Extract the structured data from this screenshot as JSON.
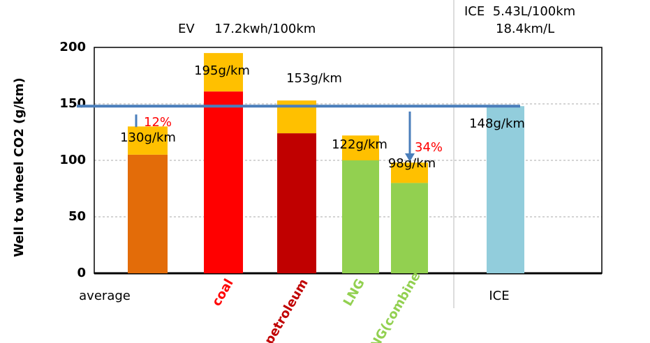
{
  "chart_data": {
    "type": "stacked_bar",
    "y_label": "Well to wheel CO2 (g/km)",
    "header": [
      "EV     17.2kwh/100km",
      "ICE  5.43L/100km",
      "18.4km/L"
    ],
    "categories": [
      "average",
      "coal",
      "petroleum",
      "LNG",
      "LNG(combine",
      "ICE"
    ],
    "category_colors": [
      "#000000",
      "#ff0000",
      "#c00000",
      "#92d050",
      "#92d050",
      "#000000"
    ],
    "series": [
      {
        "colors": [
          "#e36c09",
          "#ff0000",
          "#c00000",
          "#92d050",
          "#92d050",
          "#92cddc"
        ],
        "values": [
          105,
          161,
          124,
          100,
          80,
          148
        ]
      },
      {
        "color": "#ffc000",
        "values": [
          25,
          34,
          29,
          22,
          18,
          null
        ]
      }
    ],
    "total_labels": [
      "130g/km",
      "195g/km",
      "153g/km",
      "122g/km",
      "98g/km",
      "148g/km"
    ],
    "annotations": [
      "12%",
      "34%"
    ],
    "annotation_color": "#ff0000",
    "reference_line": {
      "value": 148,
      "color": "#4a7ebb"
    },
    "ylim": [
      0,
      200
    ],
    "yticks": [
      0,
      50,
      100,
      150,
      200
    ],
    "grid": true
  }
}
